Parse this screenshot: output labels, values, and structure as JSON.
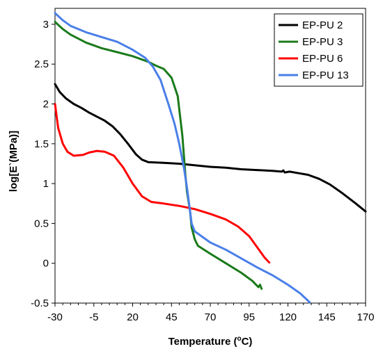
{
  "chart_data": {
    "type": "line",
    "title": "",
    "xlabel": "Temperature (",
    "xlabel_sup": "o",
    "xlabel_end": "C)",
    "ylabel": "log[E`(MPa)]",
    "xlim": [
      -30,
      170
    ],
    "ylim": [
      -0.5,
      3.2
    ],
    "xticks": [
      "-30",
      "-5",
      "20",
      "45",
      "70",
      "95",
      "120",
      "145",
      "170"
    ],
    "yticks": [
      "-0.5",
      "0",
      "0.5",
      "1",
      "1.5",
      "2",
      "2.5",
      "3"
    ],
    "legend_position": "top-right",
    "series": [
      {
        "name": "EP-PU 2",
        "color": "#000000",
        "points": [
          [
            -30,
            2.25
          ],
          [
            -27,
            2.15
          ],
          [
            -23,
            2.07
          ],
          [
            -18,
            2.0
          ],
          [
            -13,
            1.95
          ],
          [
            -8,
            1.89
          ],
          [
            -3,
            1.84
          ],
          [
            2,
            1.79
          ],
          [
            7,
            1.72
          ],
          [
            12,
            1.62
          ],
          [
            17,
            1.5
          ],
          [
            22,
            1.37
          ],
          [
            26,
            1.3
          ],
          [
            30,
            1.27
          ],
          [
            40,
            1.26
          ],
          [
            50,
            1.25
          ],
          [
            60,
            1.23
          ],
          [
            70,
            1.21
          ],
          [
            80,
            1.2
          ],
          [
            90,
            1.18
          ],
          [
            100,
            1.17
          ],
          [
            110,
            1.16
          ],
          [
            116,
            1.15
          ],
          [
            117,
            1.165
          ],
          [
            118,
            1.14
          ],
          [
            121,
            1.15
          ],
          [
            127,
            1.13
          ],
          [
            133,
            1.11
          ],
          [
            140,
            1.06
          ],
          [
            147,
            0.99
          ],
          [
            155,
            0.88
          ],
          [
            163,
            0.76
          ],
          [
            170,
            0.65
          ]
        ]
      },
      {
        "name": "EP-PU 3",
        "color": "#1a7a1a",
        "points": [
          [
            -30,
            3.03
          ],
          [
            -25,
            2.94
          ],
          [
            -20,
            2.87
          ],
          [
            -10,
            2.77
          ],
          [
            0,
            2.7
          ],
          [
            10,
            2.65
          ],
          [
            20,
            2.6
          ],
          [
            30,
            2.53
          ],
          [
            35,
            2.48
          ],
          [
            40,
            2.44
          ],
          [
            45,
            2.33
          ],
          [
            49,
            2.1
          ],
          [
            52,
            1.6
          ],
          [
            54,
            1.1
          ],
          [
            55,
            0.9
          ],
          [
            57,
            0.65
          ],
          [
            58,
            0.45
          ],
          [
            60,
            0.3
          ],
          [
            62,
            0.22
          ],
          [
            70,
            0.12
          ],
          [
            80,
            0.0
          ],
          [
            90,
            -0.12
          ],
          [
            97,
            -0.22
          ],
          [
            101,
            -0.3
          ],
          [
            102,
            -0.27
          ],
          [
            103,
            -0.32
          ]
        ]
      },
      {
        "name": "EP-PU 6",
        "color": "#ff0000",
        "points": [
          [
            -30,
            2.0
          ],
          [
            -28,
            1.7
          ],
          [
            -25,
            1.5
          ],
          [
            -22,
            1.4
          ],
          [
            -18,
            1.35
          ],
          [
            -12,
            1.36
          ],
          [
            -8,
            1.39
          ],
          [
            -3,
            1.41
          ],
          [
            2,
            1.4
          ],
          [
            8,
            1.35
          ],
          [
            14,
            1.2
          ],
          [
            20,
            1.0
          ],
          [
            26,
            0.84
          ],
          [
            32,
            0.77
          ],
          [
            40,
            0.75
          ],
          [
            50,
            0.72
          ],
          [
            60,
            0.68
          ],
          [
            70,
            0.62
          ],
          [
            80,
            0.55
          ],
          [
            88,
            0.46
          ],
          [
            95,
            0.34
          ],
          [
            101,
            0.18
          ],
          [
            105,
            0.07
          ],
          [
            108,
            0.01
          ]
        ]
      },
      {
        "name": "EP-PU 13",
        "color": "#4a7fe8",
        "points": [
          [
            -30,
            3.14
          ],
          [
            -25,
            3.05
          ],
          [
            -20,
            2.98
          ],
          [
            -10,
            2.9
          ],
          [
            0,
            2.84
          ],
          [
            10,
            2.78
          ],
          [
            20,
            2.68
          ],
          [
            28,
            2.58
          ],
          [
            33,
            2.47
          ],
          [
            38,
            2.3
          ],
          [
            43,
            2.0
          ],
          [
            47,
            1.75
          ],
          [
            50,
            1.5
          ],
          [
            53,
            1.2
          ],
          [
            55,
            0.95
          ],
          [
            57,
            0.65
          ],
          [
            58,
            0.5
          ],
          [
            60,
            0.4
          ],
          [
            70,
            0.26
          ],
          [
            80,
            0.17
          ],
          [
            90,
            0.06
          ],
          [
            100,
            -0.05
          ],
          [
            110,
            -0.15
          ],
          [
            120,
            -0.27
          ],
          [
            128,
            -0.38
          ],
          [
            134,
            -0.49
          ]
        ]
      }
    ]
  }
}
